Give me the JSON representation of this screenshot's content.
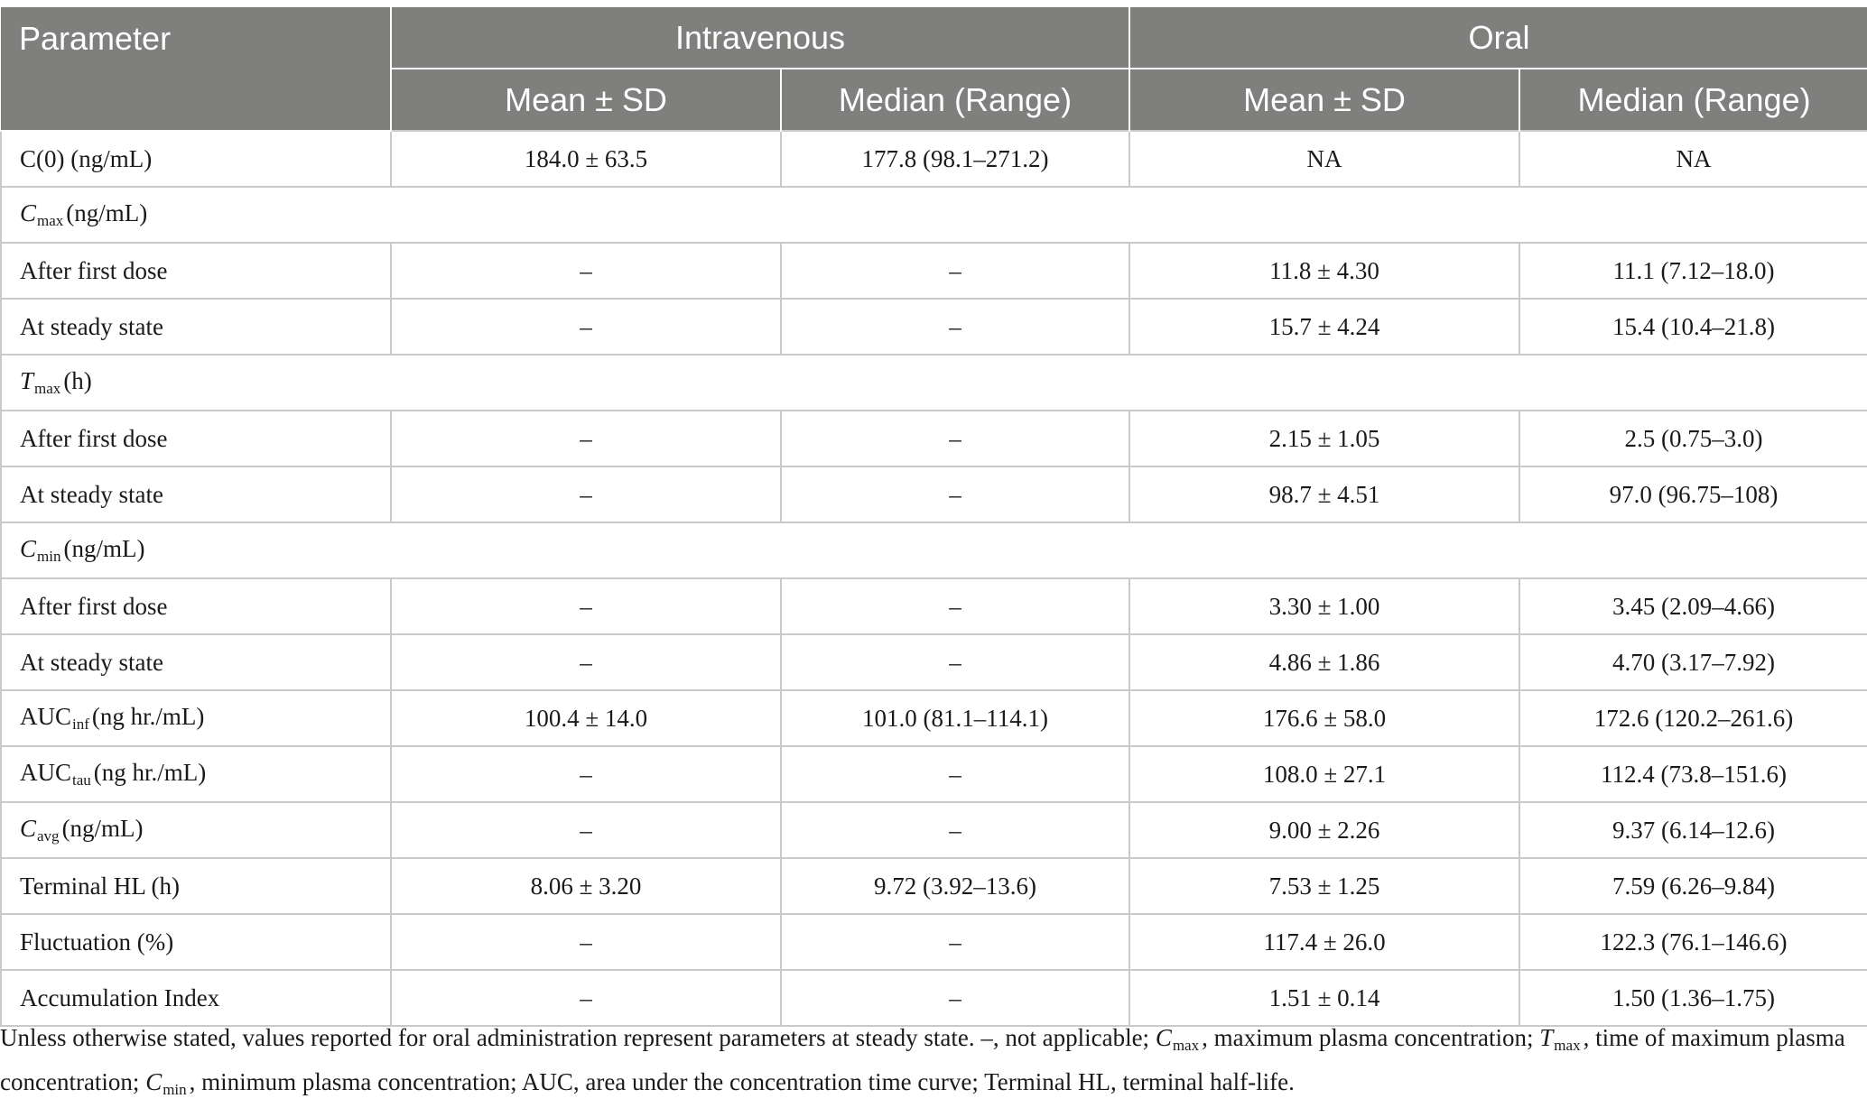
{
  "header": {
    "parameter": "Parameter",
    "iv": "Intravenous",
    "oral": "Oral",
    "iv_mean": "Mean ± SD",
    "iv_median": "Median (Range)",
    "oral_mean": "Mean ± SD",
    "oral_median": "Median (Range)"
  },
  "rows": [
    {
      "label": "C(0) (ng/mL)",
      "iv_mean": "184.0 ± 63.5",
      "iv_median": "177.8 (98.1–271.2)",
      "oral_mean": "NA",
      "oral_median": "NA"
    },
    {
      "group_main": "C",
      "group_sub": "max",
      "group_unit": "(ng/mL)"
    },
    {
      "label": "After first dose",
      "iv_mean": "–",
      "iv_median": "–",
      "oral_mean": "11.8 ± 4.30",
      "oral_median": "11.1 (7.12–18.0)"
    },
    {
      "label": "At steady state",
      "iv_mean": "–",
      "iv_median": "–",
      "oral_mean": "15.7 ± 4.24",
      "oral_median": "15.4 (10.4–21.8)"
    },
    {
      "group_main": "T",
      "group_sub": "max",
      "group_unit": "(h)"
    },
    {
      "label": "After first dose",
      "iv_mean": "–",
      "iv_median": "–",
      "oral_mean": "2.15 ± 1.05",
      "oral_median": "2.5 (0.75–3.0)"
    },
    {
      "label": "At steady state",
      "iv_mean": "–",
      "iv_median": "–",
      "oral_mean": "98.7 ± 4.51",
      "oral_median": "97.0 (96.75–108)"
    },
    {
      "group_main": "C",
      "group_sub": "min",
      "group_unit": "(ng/mL)"
    },
    {
      "label": "After first dose",
      "iv_mean": "–",
      "iv_median": "–",
      "oral_mean": "3.30 ± 1.00",
      "oral_median": "3.45 (2.09–4.66)"
    },
    {
      "label": "At steady state",
      "iv_mean": "–",
      "iv_median": "–",
      "oral_mean": "4.86 ± 1.86",
      "oral_median": "4.70 (3.17–7.92)"
    },
    {
      "label_main": "AUC",
      "label_sub": "inf",
      "label_unit": "(ng hr./mL)",
      "iv_mean": "100.4 ± 14.0",
      "iv_median": "101.0 (81.1–114.1)",
      "oral_mean": "176.6 ± 58.0",
      "oral_median": "172.6 (120.2–261.6)"
    },
    {
      "label_main": "AUC",
      "label_sub": "tau",
      "label_unit": "(ng hr./mL)",
      "iv_mean": "–",
      "iv_median": "–",
      "oral_mean": "108.0 ± 27.1",
      "oral_median": "112.4 (73.8–151.6)"
    },
    {
      "label_main": "C",
      "label_sub": "avg",
      "label_unit": "(ng/mL)",
      "iv_mean": "–",
      "iv_median": "–",
      "oral_mean": "9.00 ± 2.26",
      "oral_median": "9.37 (6.14–12.6)"
    },
    {
      "label": "Terminal HL (h)",
      "iv_mean": "8.06 ± 3.20",
      "iv_median": "9.72 (3.92–13.6)",
      "oral_mean": "7.53 ± 1.25",
      "oral_median": "7.59 (6.26–9.84)"
    },
    {
      "label": "Fluctuation (%)",
      "iv_mean": "–",
      "iv_median": "–",
      "oral_mean": "117.4 ± 26.0",
      "oral_median": "122.3 (76.1–146.6)"
    },
    {
      "label": "Accumulation Index",
      "iv_mean": "–",
      "iv_median": "–",
      "oral_mean": "1.51 ± 0.14",
      "oral_median": "1.50 (1.36–1.75)"
    }
  ],
  "footnote": {
    "p1": "Unless otherwise stated, values reported for oral administration represent parameters at steady state. –, not applicable; ",
    "cmax_main": "C",
    "cmax_sub": "max",
    "p2": ", maximum plasma concentration; ",
    "tmax_main": "T",
    "tmax_sub": "max",
    "p3": ", time of maximum plasma concentration; ",
    "cmin_main": "C",
    "cmin_sub": "min",
    "p4": ", minimum plasma concentration; AUC, area under the concentration time curve; Terminal HL, terminal half-life."
  }
}
